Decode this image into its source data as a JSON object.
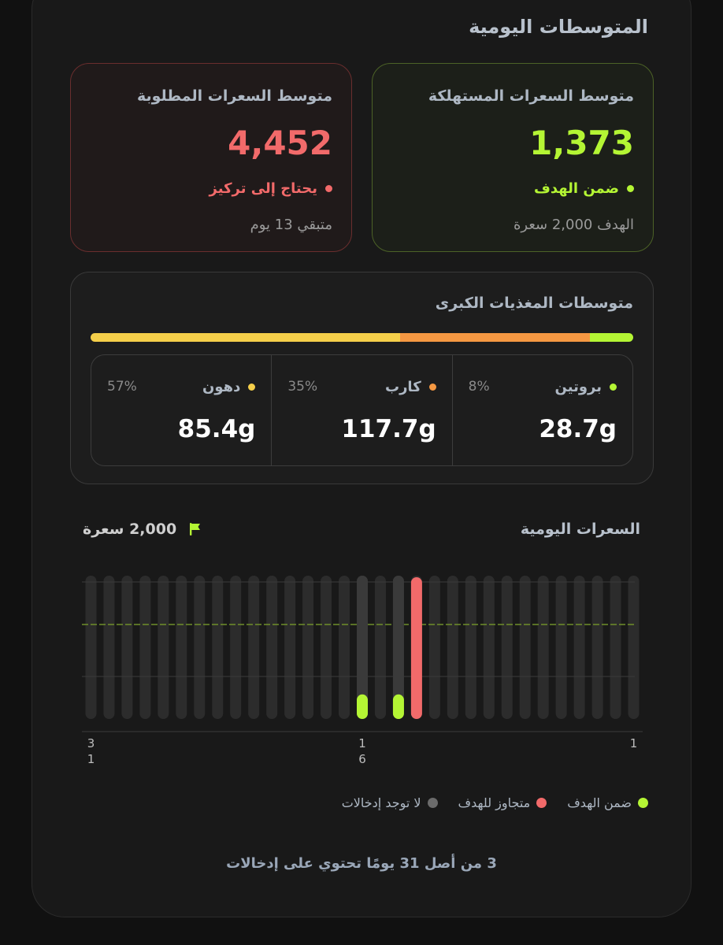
{
  "section_title": "المتوسطات اليومية",
  "consumed_card": {
    "label": "متوسط السعرات المستهلكة",
    "value": "1,373",
    "status": "ضمن الهدف",
    "sub": "الهدف 2,000 سعرة",
    "color": "#b4f534"
  },
  "required_card": {
    "label": "متوسط السعرات المطلوبة",
    "value": "4,452",
    "status": "يحتاج إلى تركيز",
    "sub": "متبقي 13 يوم",
    "color": "#f26a6a"
  },
  "macros": {
    "title": "متوسطات المغذيات الكبرى",
    "items": [
      {
        "name": "بروتين",
        "pct": "8%",
        "value": "28.7g",
        "share": 0.08,
        "color": "#b4f534"
      },
      {
        "name": "كارب",
        "pct": "35%",
        "value": "117.7g",
        "share": 0.35,
        "color": "#f59842"
      },
      {
        "name": "دهون",
        "pct": "57%",
        "value": "85.4g",
        "share": 0.57,
        "color": "#f5cf4a"
      }
    ]
  },
  "chart_header": {
    "title": "السعرات اليومية",
    "goal_label": "2,000 سعرة",
    "flag_color": "#b4f534"
  },
  "chart_data": {
    "type": "bar",
    "days": 31,
    "goal": 2000,
    "ymax": 3000,
    "bars": [
      {
        "day": 16,
        "value": 520,
        "status": "within"
      },
      {
        "day": 14,
        "value": 520,
        "status": "within"
      },
      {
        "day": 13,
        "value": 3080,
        "status": "over"
      }
    ],
    "tick_labels": [
      {
        "day": 31,
        "top": "3",
        "bottom": "1"
      },
      {
        "day": 16,
        "top": "1",
        "bottom": "6"
      },
      {
        "day": 1,
        "top": "1",
        "bottom": ""
      }
    ],
    "colors": {
      "within": "#b4f534",
      "over": "#f26a6a",
      "empty": "#2c2c2c",
      "track": "#323232"
    }
  },
  "legend": [
    {
      "label": "ضمن الهدف",
      "color": "#b4f534"
    },
    {
      "label": "متجاوز للهدف",
      "color": "#f26a6a"
    },
    {
      "label": "لا توجد إدخالات",
      "color": "#6b6b6b"
    }
  ],
  "summary": "3 من أصل 31 يومًا تحتوي على إدخالات"
}
